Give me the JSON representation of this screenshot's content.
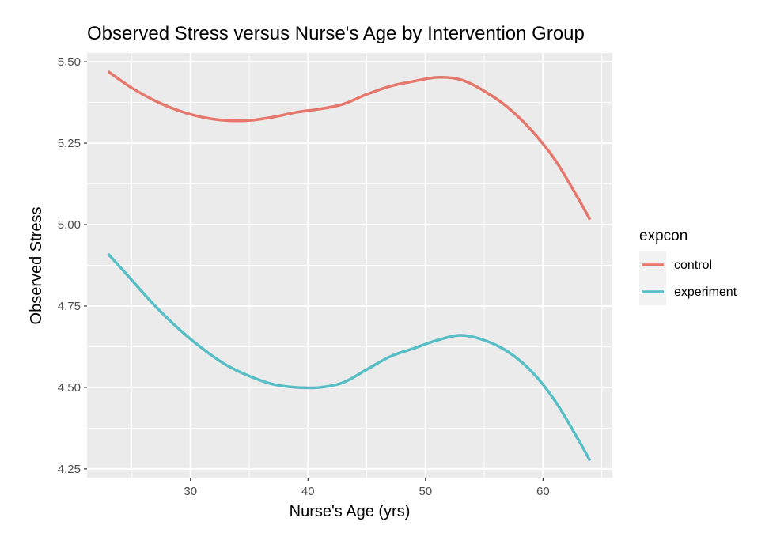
{
  "chart_data": {
    "type": "line",
    "title": "Observed Stress versus Nurse's Age by Intervention Group",
    "xlabel": "Nurse's Age (yrs)",
    "ylabel": "Observed Stress",
    "xlim": [
      21.2,
      65.9
    ],
    "ylim": [
      4.223,
      5.527
    ],
    "x_ticks": [
      30,
      40,
      50,
      60
    ],
    "x_tick_labels": [
      "30",
      "40",
      "50",
      "60"
    ],
    "y_ticks": [
      4.25,
      4.5,
      4.75,
      5.0,
      5.25,
      5.5
    ],
    "y_tick_labels": [
      "4.25",
      "4.50",
      "4.75",
      "5.00",
      "5.25",
      "5.50"
    ],
    "grid": true,
    "legend": {
      "title": "expcon",
      "position": "right"
    },
    "series": [
      {
        "name": "control",
        "color": "#E6776C",
        "x": [
          23,
          25,
          27,
          29,
          31,
          33,
          35,
          37,
          39,
          41,
          43,
          45,
          47,
          49,
          51,
          53,
          55,
          57,
          59,
          61,
          63,
          64
        ],
        "y": [
          5.47,
          5.42,
          5.38,
          5.35,
          5.33,
          5.32,
          5.32,
          5.33,
          5.345,
          5.355,
          5.37,
          5.4,
          5.425,
          5.44,
          5.452,
          5.445,
          5.41,
          5.36,
          5.29,
          5.2,
          5.08,
          5.015
        ]
      },
      {
        "name": "experiment",
        "color": "#57BEC6",
        "x": [
          23,
          25,
          27,
          29,
          31,
          33,
          35,
          37,
          39,
          41,
          43,
          45,
          47,
          49,
          51,
          53,
          55,
          57,
          59,
          61,
          63,
          64
        ],
        "y": [
          4.91,
          4.83,
          4.75,
          4.68,
          4.62,
          4.57,
          4.535,
          4.51,
          4.5,
          4.5,
          4.515,
          4.555,
          4.595,
          4.62,
          4.645,
          4.66,
          4.645,
          4.61,
          4.55,
          4.46,
          4.34,
          4.275
        ]
      }
    ]
  }
}
